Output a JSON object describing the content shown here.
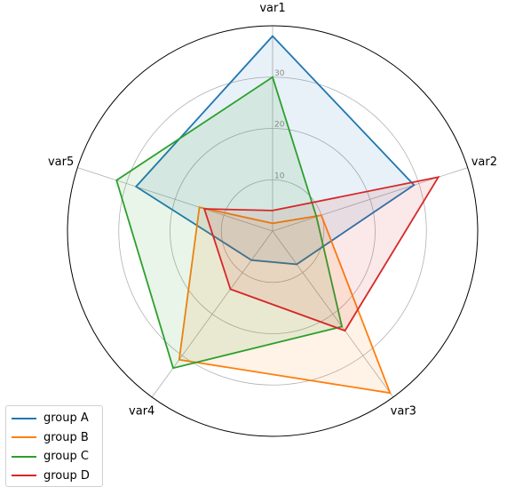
{
  "chart_data": {
    "type": "radar",
    "categories": [
      "var1",
      "var2",
      "var3",
      "var4",
      "var5"
    ],
    "rlim": [
      0,
      40
    ],
    "rticks": [
      10,
      20,
      30
    ],
    "grid": true,
    "legend_position": "lower-left",
    "series": [
      {
        "name": "group A",
        "color": "#1f77b4",
        "values": [
          38,
          29,
          8,
          7,
          28
        ]
      },
      {
        "name": "group B",
        "color": "#ff7f0e",
        "values": [
          1.5,
          10,
          39,
          31,
          15
        ]
      },
      {
        "name": "group C",
        "color": "#2ca02c",
        "values": [
          30,
          9,
          23,
          33,
          32
        ]
      },
      {
        "name": "group D",
        "color": "#d62728",
        "values": [
          4,
          34,
          24,
          14,
          14
        ]
      }
    ]
  }
}
